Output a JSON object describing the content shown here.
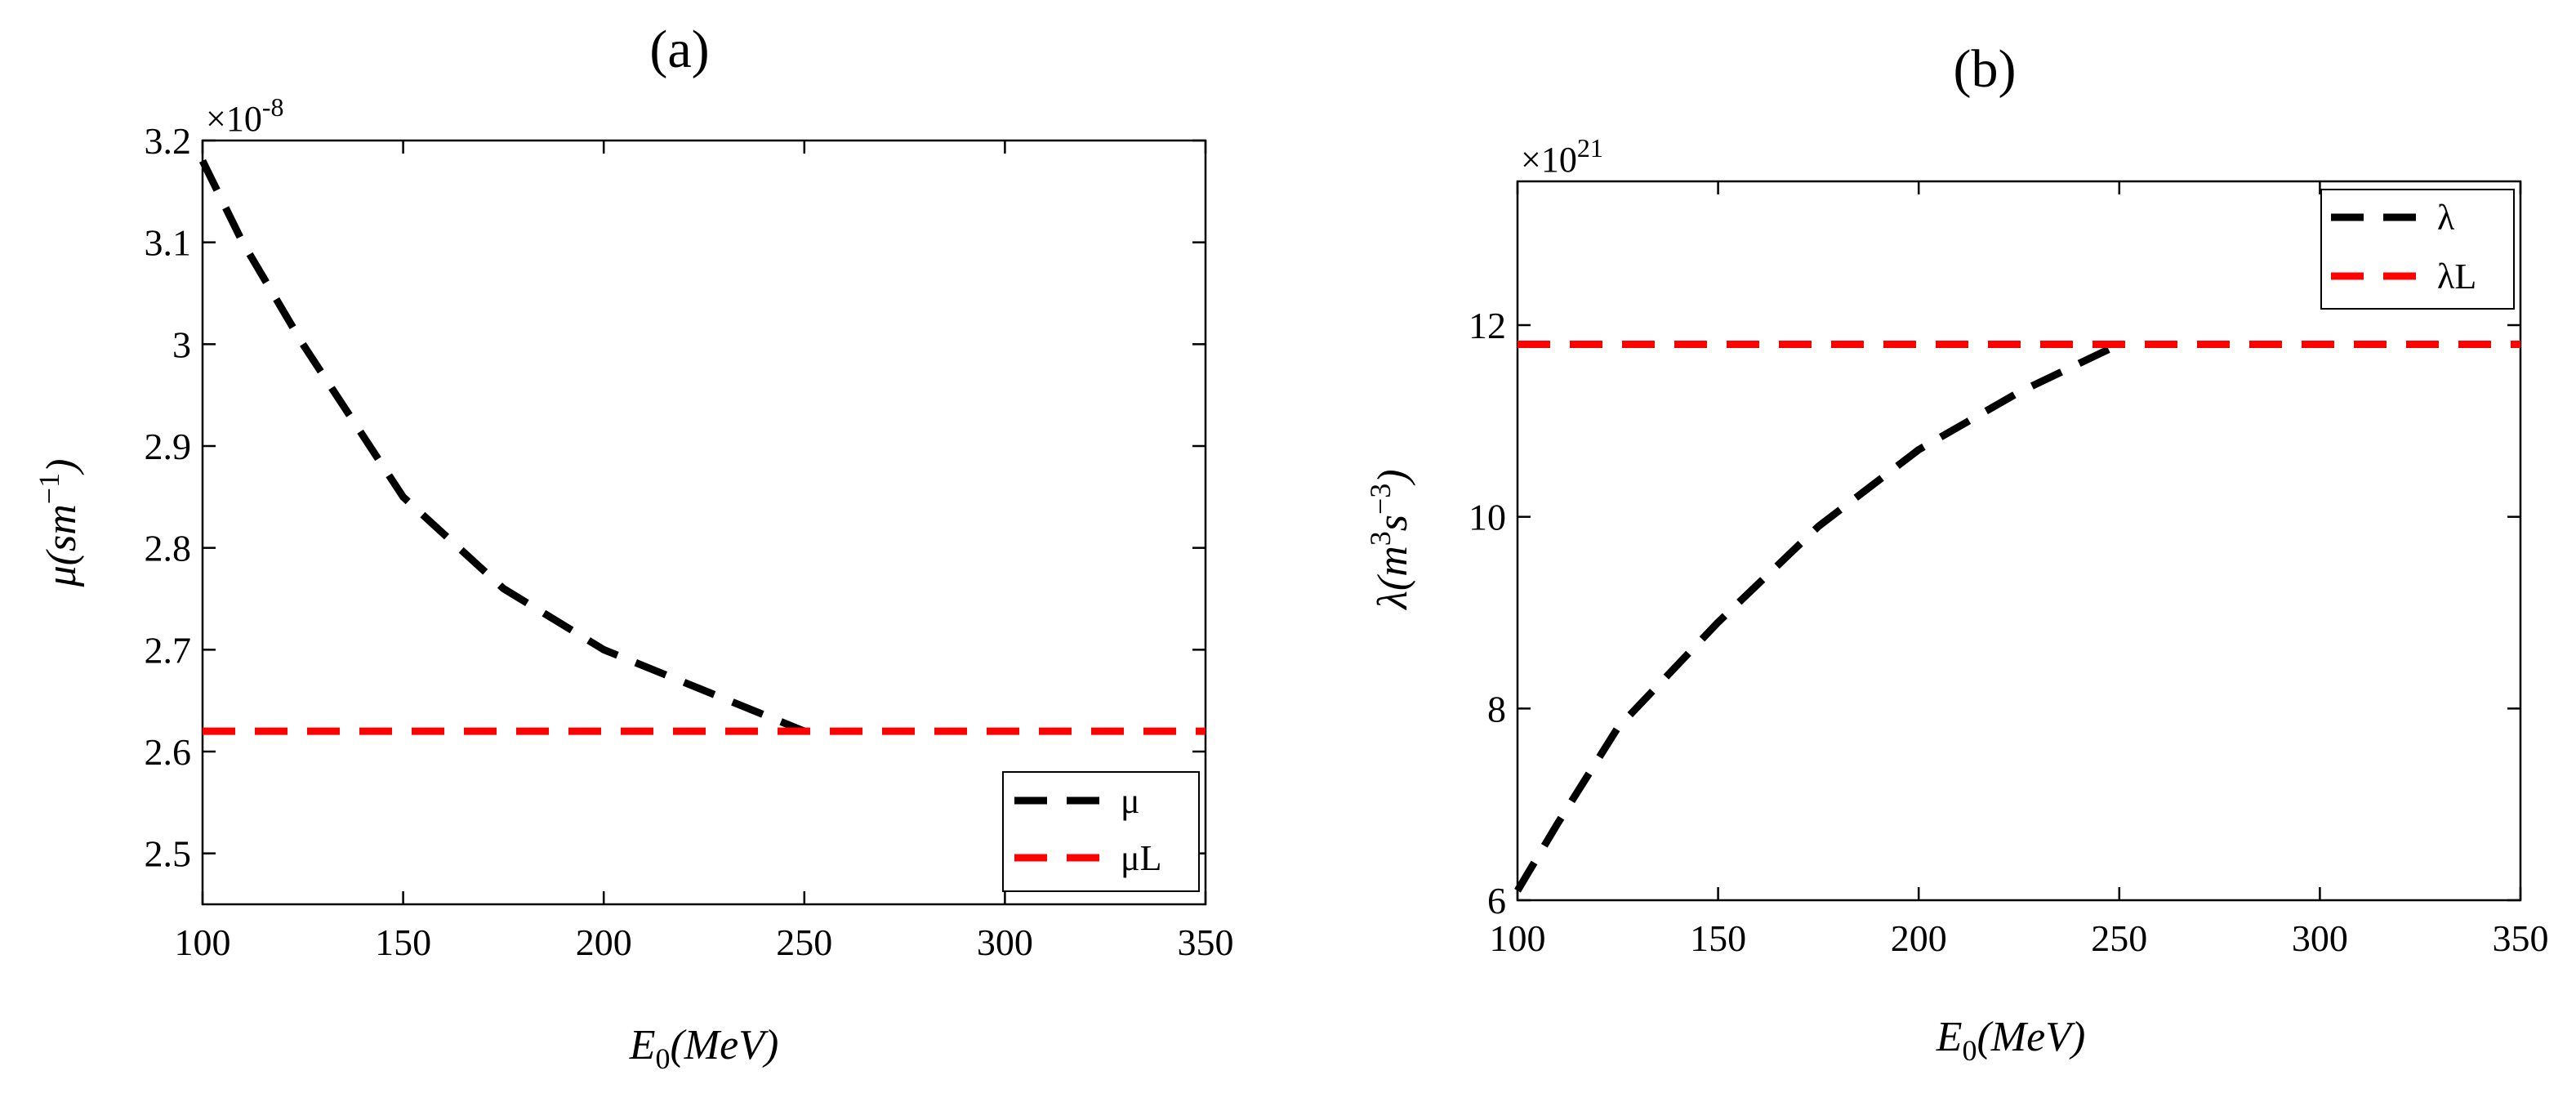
{
  "chart_data": [
    {
      "type": "line",
      "panel_label": "(a)",
      "xlabel": {
        "main": "E",
        "sub": "0",
        "rest": "(MeV)"
      },
      "ylabel": {
        "main": "μ(sm",
        "sup": "−1",
        "close": ")"
      },
      "y_multiplier": {
        "base": "×10",
        "exp": "-8"
      },
      "xlim": [
        100,
        350
      ],
      "ylim": [
        2.45,
        3.2
      ],
      "x_ticks": [
        100,
        150,
        200,
        250,
        300,
        350
      ],
      "y_ticks": [
        2.5,
        2.6,
        2.7,
        2.8,
        2.9,
        3,
        3.1,
        3.2
      ],
      "legend_position": "bottom-right",
      "series": [
        {
          "name": "μ",
          "color": "#000000",
          "style": "dashed",
          "x": [
            100,
            110,
            125,
            150,
            175,
            200,
            225,
            250
          ],
          "y": [
            3.18,
            3.1,
            3.0,
            2.85,
            2.76,
            2.7,
            2.66,
            2.62
          ]
        },
        {
          "name": "μL",
          "color": "#ff0000",
          "style": "dashed",
          "x": [
            100,
            350
          ],
          "y": [
            2.62,
            2.62
          ]
        }
      ]
    },
    {
      "type": "line",
      "panel_label": "(b)",
      "xlabel": {
        "main": "E",
        "sub": "0",
        "rest": "(MeV)"
      },
      "ylabel": {
        "main": "λ(m",
        "sup": "3",
        "mid": "s",
        "sup2": "−3",
        "close": ")"
      },
      "y_multiplier": {
        "base": "×10",
        "exp": "21"
      },
      "xlim": [
        100,
        350
      ],
      "ylim": [
        6,
        13.5
      ],
      "x_ticks": [
        100,
        150,
        200,
        250,
        300,
        350
      ],
      "y_ticks": [
        6,
        8,
        10,
        12
      ],
      "legend_position": "top-right",
      "series": [
        {
          "name": "λ",
          "color": "#000000",
          "style": "dashed",
          "x": [
            100,
            110,
            125,
            150,
            175,
            200,
            225,
            250
          ],
          "y": [
            6.1,
            6.8,
            7.8,
            8.9,
            9.9,
            10.7,
            11.3,
            11.8
          ]
        },
        {
          "name": "λL",
          "color": "#ff0000",
          "style": "dashed",
          "x": [
            100,
            350
          ],
          "y": [
            11.8,
            11.8
          ]
        }
      ]
    }
  ]
}
